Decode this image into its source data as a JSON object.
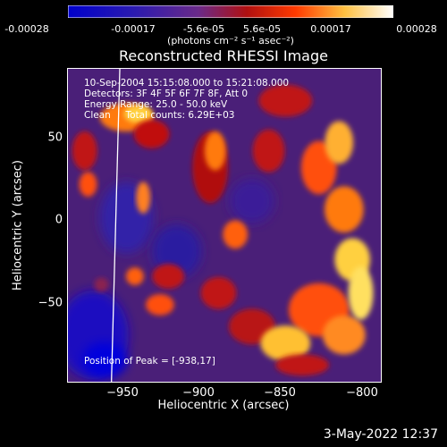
{
  "colorbar": {
    "ticks": [
      "-0.00028",
      "-0.00017",
      "-5.6e-05",
      "5.6e-05",
      "0.00017",
      "0.00028"
    ],
    "units": "(photons cm⁻² s⁻¹ asec⁻²)",
    "colors": [
      "#0000cc",
      "#3a1a9a",
      "#6a2a8a",
      "#b01010",
      "#ff4a00",
      "#ffd040",
      "#ffffff"
    ]
  },
  "title": "Reconstructed RHESSI Image",
  "annotations": {
    "line1": "10-Sep-2004 15:15:08.000 to 15:21:08.000",
    "line2": "Detectors: 3F 4F 5F 6F 7F 8F, Att 0",
    "line3": "Energy Range: 25.0 - 50.0 keV",
    "line4": "Clean     Total counts: 6.29E+03",
    "peak": "Position of Peak = [-938,17]"
  },
  "chart_data": {
    "type": "heatmap",
    "title": "Reconstructed RHESSI Image",
    "xlabel": "Heliocentric X (arcsec)",
    "ylabel": "Heliocentric Y (arcsec)",
    "xlim": [
      -980,
      -793
    ],
    "ylim": [
      -98,
      89
    ],
    "x_ticks": [
      -950,
      -900,
      -850,
      -800
    ],
    "y_ticks": [
      -50,
      0,
      50
    ],
    "x_tick_labels": [
      "−950",
      "−900",
      "−850",
      "−800"
    ],
    "y_tick_labels": [
      "−50",
      "0",
      "50"
    ],
    "color_range": [
      -0.00028,
      0.00028
    ],
    "peak_position": [
      -938,
      17
    ],
    "limb_line_x": [
      -954,
      -949
    ]
  },
  "timestamp": "3-May-2022 12:37"
}
